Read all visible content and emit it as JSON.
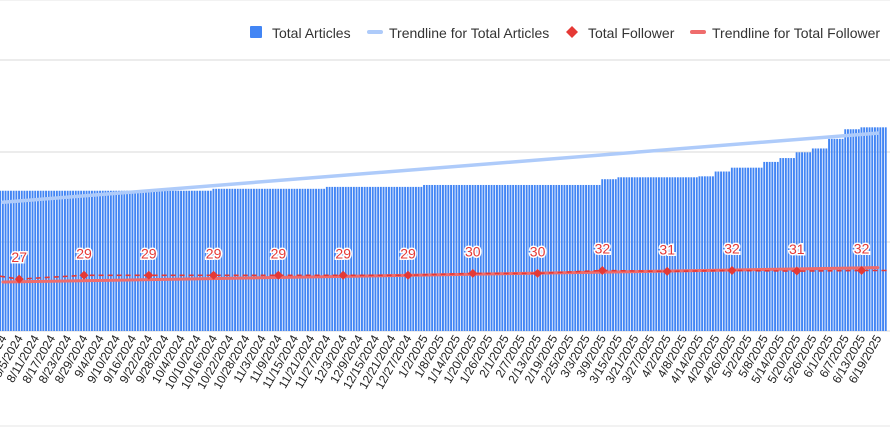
{
  "chart_data": {
    "type": "bar",
    "legend_position": "top-right",
    "colors": {
      "articles": "#4285f4",
      "articles_trend": "#aecbfa",
      "followers": "#e53935",
      "followers_trend": "#ef6c6c"
    },
    "legend": [
      {
        "name": "Total Articles",
        "marker": "square"
      },
      {
        "name": "Trendline for Total Articles",
        "marker": "line"
      },
      {
        "name": "Total Follower",
        "marker": "diamond"
      },
      {
        "name": "Trendline for Total Follower",
        "marker": "line"
      }
    ],
    "x_ticks": [
      "7/30/2024",
      "8/5/2024",
      "8/11/2024",
      "8/17/2024",
      "8/23/2024",
      "8/29/2024",
      "9/4/2024",
      "9/10/2024",
      "9/16/2024",
      "9/22/2024",
      "9/28/2024",
      "10/4/2024",
      "10/10/2024",
      "10/16/2024",
      "10/22/2024",
      "10/28/2024",
      "11/3/2024",
      "11/9/2024",
      "11/15/2024",
      "11/21/2024",
      "11/27/2024",
      "12/3/2024",
      "12/9/2024",
      "12/15/2024",
      "12/21/2024",
      "12/27/2024",
      "1/2/2025",
      "1/8/2025",
      "1/14/2025",
      "1/20/2025",
      "1/26/2025",
      "2/1/2025",
      "2/7/2025",
      "2/13/2025",
      "2/19/2025",
      "2/25/2025",
      "3/3/2025",
      "3/9/2025",
      "3/15/2025",
      "3/21/2025",
      "3/27/2025",
      "4/2/2025",
      "4/8/2025",
      "4/14/2025",
      "4/20/2025",
      "4/26/2025",
      "5/2/2025",
      "5/8/2025",
      "5/14/2025",
      "5/20/2025",
      "5/26/2025",
      "6/1/2025",
      "6/7/2025",
      "6/13/2025",
      "6/19/2025"
    ],
    "articles_steps": [
      {
        "from": "7/30/2024",
        "value": 73
      },
      {
        "from": "10/16/2024",
        "value": 74
      },
      {
        "from": "11/27/2024",
        "value": 75
      },
      {
        "from": "1/2/2025",
        "value": 76
      },
      {
        "from": "3/9/2025",
        "value": 79
      },
      {
        "from": "3/15/2025",
        "value": 80
      },
      {
        "from": "4/14/2025",
        "value": 80.5
      },
      {
        "from": "4/20/2025",
        "value": 83
      },
      {
        "from": "4/26/2025",
        "value": 85
      },
      {
        "from": "5/8/2025",
        "value": 88
      },
      {
        "from": "5/14/2025",
        "value": 90
      },
      {
        "from": "5/20/2025",
        "value": 93
      },
      {
        "from": "5/26/2025",
        "value": 95
      },
      {
        "from": "6/1/2025",
        "value": 100
      },
      {
        "from": "6/7/2025",
        "value": 105
      },
      {
        "from": "6/13/2025",
        "value": 106
      }
    ],
    "articles_trendline": [
      {
        "x": "7/30/2024",
        "y": 67
      },
      {
        "x": "6/19/2025",
        "y": 103
      }
    ],
    "followers": [
      {
        "x": "8/5/2024",
        "y": 27,
        "label": "27"
      },
      {
        "x": "8/29/2024",
        "y": 29,
        "label": "29"
      },
      {
        "x": "9/22/2024",
        "y": 29,
        "label": "29"
      },
      {
        "x": "10/16/2024",
        "y": 29,
        "label": "29"
      },
      {
        "x": "11/9/2024",
        "y": 29,
        "label": "29"
      },
      {
        "x": "12/3/2024",
        "y": 29,
        "label": "29"
      },
      {
        "x": "12/27/2024",
        "y": 29,
        "label": "29"
      },
      {
        "x": "1/20/2025",
        "y": 30,
        "label": "30"
      },
      {
        "x": "2/13/2025",
        "y": 30,
        "label": "30"
      },
      {
        "x": "3/9/2025",
        "y": 31.5,
        "label": "32"
      },
      {
        "x": "4/2/2025",
        "y": 31,
        "label": "31"
      },
      {
        "x": "4/26/2025",
        "y": 31.5,
        "label": "32"
      },
      {
        "x": "5/20/2025",
        "y": 31.2,
        "label": "31"
      },
      {
        "x": "6/13/2025",
        "y": 31.5,
        "label": "32"
      }
    ],
    "followers_baseline": 28.5,
    "followers_trendline": [
      {
        "x": "7/30/2024",
        "y": 25.5
      },
      {
        "x": "6/19/2025",
        "y": 33
      }
    ],
    "ylim": [
      0,
      140
    ],
    "grid": true
  }
}
